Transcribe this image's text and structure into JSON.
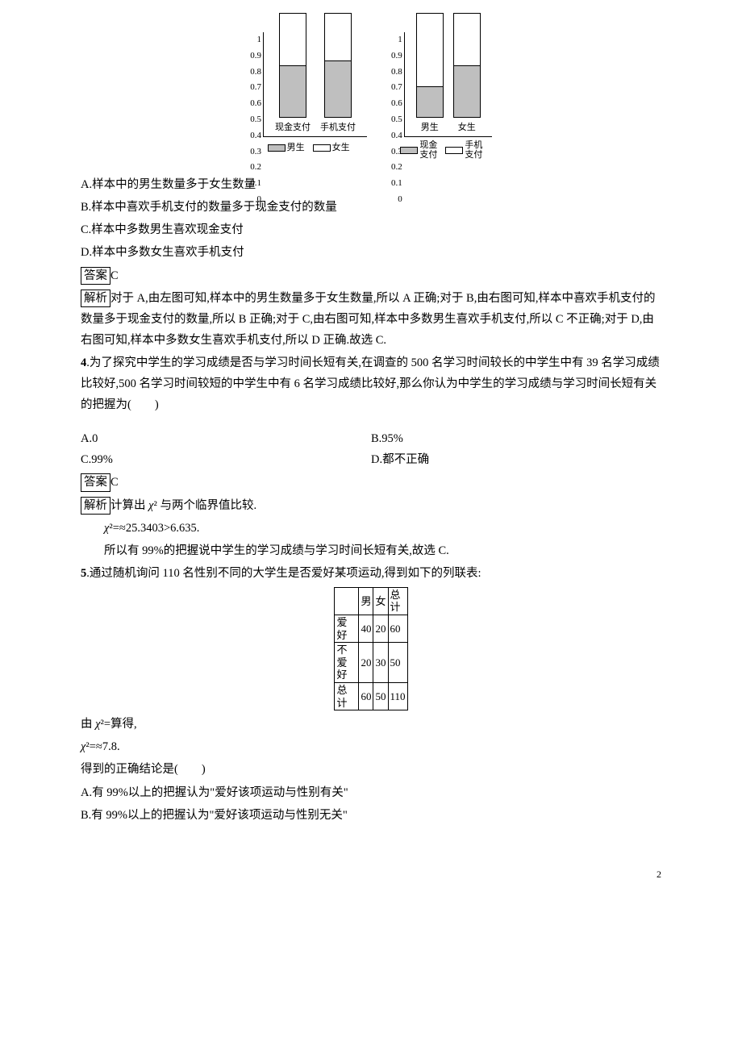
{
  "chart_left": {
    "ylim": [
      0,
      1
    ],
    "yticks": [
      "1",
      "0.9",
      "0.8",
      "0.7",
      "0.6",
      "0.5",
      "0.4",
      "0.3",
      "0.2",
      "0.1",
      "0"
    ],
    "bars": [
      {
        "xlabel": "现金支付",
        "seg1": 0.5,
        "seg2": 0.5
      },
      {
        "xlabel": "手机支付",
        "seg1": 0.55,
        "seg2": 0.45
      }
    ],
    "legend": [
      {
        "label": "男生",
        "color": "#bfbfbf"
      },
      {
        "label": "女生",
        "color": "#ffffff"
      }
    ],
    "bar_border": "#000000",
    "axis_color": "#000000",
    "font_size_tick": 11
  },
  "chart_right": {
    "ylim": [
      0,
      1
    ],
    "yticks": [
      "1",
      "0.9",
      "0.8",
      "0.7",
      "0.6",
      "0.5",
      "0.4",
      "0.3",
      "0.2",
      "0.1",
      "0"
    ],
    "bars": [
      {
        "xlabel": "男生",
        "seg1": 0.3,
        "seg2": 0.7
      },
      {
        "xlabel": "女生",
        "seg1": 0.5,
        "seg2": 0.5
      }
    ],
    "legend": [
      {
        "label": "现金\n支付",
        "color": "#bfbfbf"
      },
      {
        "label": "手机\n支付",
        "color": "#ffffff"
      }
    ],
    "bar_border": "#000000",
    "axis_color": "#000000",
    "font_size_tick": 11
  },
  "q3": {
    "optA": "A.样本中的男生数量多于女生数量",
    "optB": "B.样本中喜欢手机支付的数量多于现金支付的数量",
    "optC": "C.样本中多数男生喜欢现金支付",
    "optD": "D.样本中多数女生喜欢手机支付",
    "ans_label": "答案",
    "ans": "C",
    "exp_label": "解析",
    "exp": "对于 A,由左图可知,样本中的男生数量多于女生数量,所以 A 正确;对于 B,由右图可知,样本中喜欢手机支付的数量多于现金支付的数量,所以 B 正确;对于 C,由右图可知,样本中多数男生喜欢手机支付,所以 C 不正确;对于 D,由右图可知,样本中多数女生喜欢手机支付,所以 D 正确.故选 C."
  },
  "q4": {
    "num": "4",
    "stem": ".为了探究中学生的学习成绩是否与学习时间长短有关,在调查的 500 名学习时间较长的中学生中有 39 名学习成绩比较好,500 名学习时间较短的中学生中有 6 名学习成绩比较好,那么你认为中学生的学习成绩与学习时间长短有关的把握为(　　)",
    "optA": "A.0",
    "optB": "B.95%",
    "optC": "C.99%",
    "optD": "D.都不正确",
    "ans_label": "答案",
    "ans": "C",
    "exp_label": "解析",
    "exp1": "计算出 χ² 与两个临界值比较.",
    "exp2": "χ²=≈25.3403>6.635.",
    "exp3": "所以有 99%的把握说中学生的学习成绩与学习时间长短有关,故选 C."
  },
  "q5": {
    "num": "5",
    "stem": ".通过随机询问 110 名性别不同的大学生是否爱好某项运动,得到如下的列联表:",
    "table": {
      "cols": [
        "",
        "男",
        "女",
        "总计"
      ],
      "rows": [
        [
          "爱好",
          "40",
          "20",
          "60"
        ],
        [
          "不爱好",
          "20",
          "30",
          "50"
        ],
        [
          "总计",
          "60",
          "50",
          "110"
        ]
      ],
      "border_color": "#000000"
    },
    "line1": "由 χ²=算得,",
    "line2": "χ²=≈7.8.",
    "line3": "得到的正确结论是(　　)",
    "optA": "A.有 99%以上的把握认为\"爱好该项运动与性别有关\"",
    "optB": "B.有 99%以上的把握认为\"爱好该项运动与性别无关\""
  },
  "page_number": "2"
}
